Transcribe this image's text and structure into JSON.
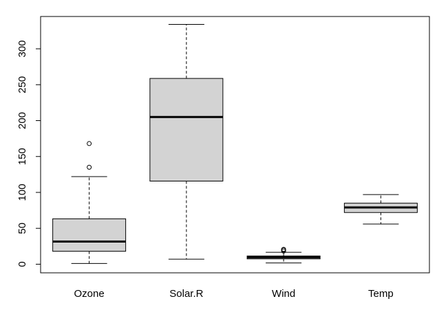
{
  "chart_data": {
    "type": "boxplot",
    "title": "",
    "xlabel": "",
    "ylabel": "",
    "ylim": [
      -12,
      345
    ],
    "yticks": [
      0,
      50,
      100,
      150,
      200,
      250,
      300
    ],
    "box_fill": "#d3d3d3",
    "categories": [
      "Ozone",
      "Solar.R",
      "Wind",
      "Temp"
    ],
    "boxes": [
      {
        "name": "Ozone",
        "whisker_low": 1,
        "q1": 18,
        "median": 31.5,
        "q3": 63.25,
        "whisker_high": 122,
        "outliers": [
          135,
          168
        ]
      },
      {
        "name": "Solar.R",
        "whisker_low": 7,
        "q1": 115.75,
        "median": 205,
        "q3": 258.75,
        "whisker_high": 334,
        "outliers": []
      },
      {
        "name": "Wind",
        "whisker_low": 1.7,
        "q1": 7.4,
        "median": 9.7,
        "q3": 11.5,
        "whisker_high": 16.6,
        "outliers": [
          18.4,
          20.1,
          20.7
        ]
      },
      {
        "name": "Temp",
        "whisker_low": 56,
        "q1": 72,
        "median": 79,
        "q3": 85,
        "whisker_high": 97,
        "outliers": []
      }
    ]
  }
}
